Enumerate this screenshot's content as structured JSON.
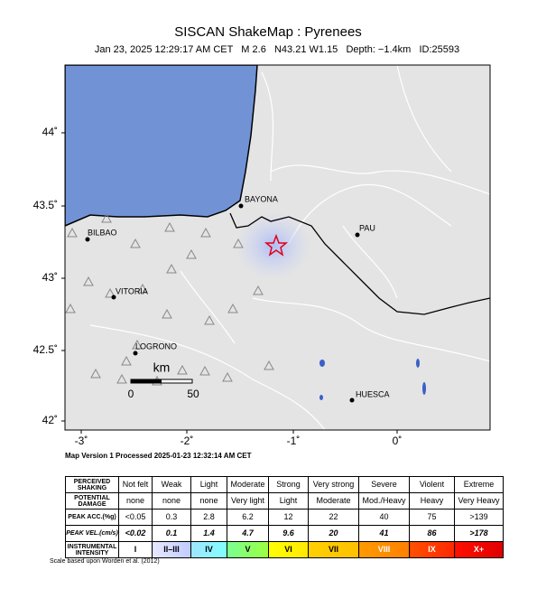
{
  "header": {
    "title": "SISCAN ShakeMap : Pyrenees",
    "subtitle": "Jan 23, 2025 12:29:17 AM CET   M 2.6   N43.21 W1.15   Depth: −1.4km   ID:25593"
  },
  "map": {
    "x_labels": [
      "-3˚",
      "-2˚",
      "-1˚",
      "0˚"
    ],
    "y_labels": [
      "44˚",
      "43.5˚",
      "43˚",
      "42.5˚",
      "42˚"
    ],
    "cities": [
      "BAYONA",
      "PAU",
      "BILBAO",
      "VITORIA",
      "LOGRONO",
      "HUESCA"
    ],
    "scale_bar": {
      "unit": "km",
      "labels": [
        "0",
        "50"
      ]
    },
    "processed": "Map Version 1 Processed 2025-01-23 12:32:14 AM CET"
  },
  "table": {
    "rows": [
      [
        "PERCEIVED SHAKING",
        "Not felt",
        "Weak",
        "Light",
        "Moderate",
        "Strong",
        "Very strong",
        "Severe",
        "Violent",
        "Extreme"
      ],
      [
        "POTENTIAL DAMAGE",
        "none",
        "none",
        "none",
        "Very light",
        "Light",
        "Moderate",
        "Mod./Heavy",
        "Heavy",
        "Very Heavy"
      ],
      [
        "PEAK ACC.(%g)",
        "<0.05",
        "0.3",
        "2.8",
        "6.2",
        "12",
        "22",
        "40",
        "75",
        ">139"
      ],
      [
        "PEAK VEL.(cm/s)",
        "<0.02",
        "0.1",
        "1.4",
        "4.7",
        "9.6",
        "20",
        "41",
        "86",
        ">178"
      ],
      [
        "INSTRUMENTAL INTENSITY",
        "I",
        "II–III",
        "IV",
        "V",
        "VI",
        "VII",
        "VIII",
        "IX",
        "X+"
      ]
    ],
    "footnote": "Scale based upon Worden et al. (2012)"
  }
}
